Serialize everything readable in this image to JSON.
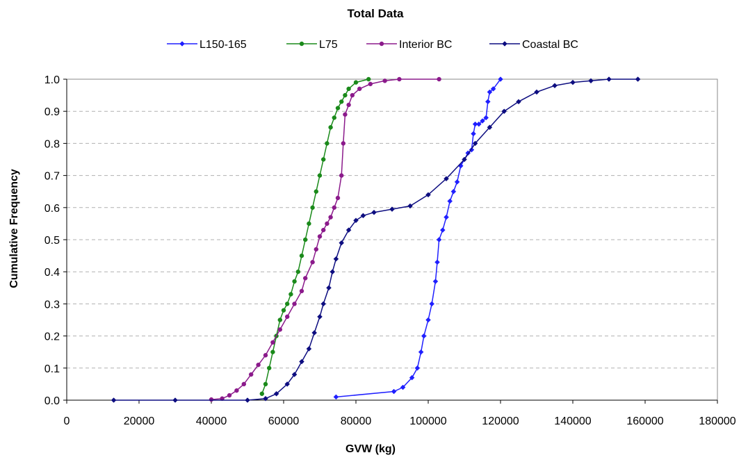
{
  "chart_data": {
    "type": "line",
    "title": "Total Data",
    "xlabel": "GVW (kg)",
    "ylabel": "Cumulative Frequency",
    "xlim": [
      0,
      180000
    ],
    "ylim": [
      0,
      1.0
    ],
    "x_ticks": [
      0,
      20000,
      40000,
      60000,
      80000,
      100000,
      120000,
      140000,
      160000,
      180000
    ],
    "x_tick_labels": [
      "0",
      "20000",
      "40000",
      "60000",
      "80000",
      "100000",
      "120000",
      "140000",
      "160000",
      "180000"
    ],
    "y_ticks": [
      0,
      0.1,
      0.2,
      0.3,
      0.4,
      0.5,
      0.6,
      0.7,
      0.8,
      0.9,
      1.0
    ],
    "y_tick_labels": [
      "0.0",
      "0.1",
      "0.2",
      "0.3",
      "0.4",
      "0.5",
      "0.6",
      "0.7",
      "0.8",
      "0.9",
      "1.0"
    ],
    "grid": "horizontal dashed",
    "legend_position": "top",
    "series": [
      {
        "name": "L150-165",
        "color": "#1f1fff",
        "marker": "diamond",
        "points": [
          [
            74500,
            0.01
          ],
          [
            90500,
            0.027
          ],
          [
            93000,
            0.04
          ],
          [
            95500,
            0.07
          ],
          [
            97000,
            0.1
          ],
          [
            98000,
            0.15
          ],
          [
            98800,
            0.2
          ],
          [
            100000,
            0.25
          ],
          [
            101000,
            0.3
          ],
          [
            102000,
            0.37
          ],
          [
            102500,
            0.43
          ],
          [
            103000,
            0.5
          ],
          [
            104000,
            0.53
          ],
          [
            105000,
            0.57
          ],
          [
            106000,
            0.62
          ],
          [
            107000,
            0.65
          ],
          [
            108000,
            0.68
          ],
          [
            109000,
            0.73
          ],
          [
            110000,
            0.75
          ],
          [
            111000,
            0.77
          ],
          [
            112000,
            0.78
          ],
          [
            112500,
            0.83
          ],
          [
            113000,
            0.86
          ],
          [
            114000,
            0.86
          ],
          [
            115000,
            0.87
          ],
          [
            116000,
            0.88
          ],
          [
            116500,
            0.93
          ],
          [
            117000,
            0.96
          ],
          [
            118000,
            0.97
          ],
          [
            120000,
            1.0
          ]
        ]
      },
      {
        "name": "L75",
        "color": "#1a8a1a",
        "marker": "circle",
        "points": [
          [
            54000,
            0.02
          ],
          [
            55000,
            0.05
          ],
          [
            56000,
            0.1
          ],
          [
            57000,
            0.15
          ],
          [
            58000,
            0.2
          ],
          [
            59000,
            0.25
          ],
          [
            60000,
            0.28
          ],
          [
            61000,
            0.3
          ],
          [
            62000,
            0.33
          ],
          [
            63000,
            0.37
          ],
          [
            64000,
            0.4
          ],
          [
            65000,
            0.45
          ],
          [
            66000,
            0.5
          ],
          [
            67000,
            0.55
          ],
          [
            68000,
            0.6
          ],
          [
            69000,
            0.65
          ],
          [
            70000,
            0.7
          ],
          [
            71000,
            0.75
          ],
          [
            72000,
            0.8
          ],
          [
            73000,
            0.85
          ],
          [
            74000,
            0.88
          ],
          [
            75000,
            0.91
          ],
          [
            76000,
            0.93
          ],
          [
            77000,
            0.95
          ],
          [
            78000,
            0.97
          ],
          [
            80000,
            0.99
          ],
          [
            83500,
            1.0
          ]
        ]
      },
      {
        "name": "Interior BC",
        "color": "#8b1a8b",
        "marker": "circle",
        "points": [
          [
            40000,
            0.002
          ],
          [
            43000,
            0.005
          ],
          [
            45000,
            0.015
          ],
          [
            47000,
            0.03
          ],
          [
            49000,
            0.05
          ],
          [
            51000,
            0.08
          ],
          [
            53000,
            0.11
          ],
          [
            55000,
            0.14
          ],
          [
            57000,
            0.18
          ],
          [
            59000,
            0.22
          ],
          [
            61000,
            0.26
          ],
          [
            63000,
            0.3
          ],
          [
            65000,
            0.34
          ],
          [
            66000,
            0.38
          ],
          [
            68000,
            0.43
          ],
          [
            69000,
            0.47
          ],
          [
            70000,
            0.51
          ],
          [
            71000,
            0.53
          ],
          [
            72000,
            0.55
          ],
          [
            73000,
            0.57
          ],
          [
            74000,
            0.6
          ],
          [
            75000,
            0.63
          ],
          [
            76000,
            0.7
          ],
          [
            76500,
            0.8
          ],
          [
            77000,
            0.89
          ],
          [
            78000,
            0.92
          ],
          [
            79000,
            0.95
          ],
          [
            81000,
            0.97
          ],
          [
            84000,
            0.985
          ],
          [
            88000,
            0.995
          ],
          [
            92000,
            1.0
          ],
          [
            103000,
            1.0
          ]
        ]
      },
      {
        "name": "Coastal BC",
        "color": "#0d0d80",
        "marker": "diamond",
        "points": [
          [
            13000,
            0.0
          ],
          [
            30000,
            0.0
          ],
          [
            50000,
            0.0
          ],
          [
            55000,
            0.005
          ],
          [
            58000,
            0.02
          ],
          [
            61000,
            0.05
          ],
          [
            63000,
            0.08
          ],
          [
            65000,
            0.12
          ],
          [
            67000,
            0.16
          ],
          [
            68500,
            0.21
          ],
          [
            70000,
            0.26
          ],
          [
            71000,
            0.3
          ],
          [
            72500,
            0.35
          ],
          [
            73500,
            0.4
          ],
          [
            74500,
            0.44
          ],
          [
            76000,
            0.49
          ],
          [
            78000,
            0.53
          ],
          [
            80000,
            0.56
          ],
          [
            82000,
            0.575
          ],
          [
            85000,
            0.585
          ],
          [
            90000,
            0.595
          ],
          [
            95000,
            0.605
          ],
          [
            100000,
            0.64
          ],
          [
            105000,
            0.69
          ],
          [
            110000,
            0.75
          ],
          [
            113000,
            0.8
          ],
          [
            117000,
            0.85
          ],
          [
            121000,
            0.9
          ],
          [
            125000,
            0.93
          ],
          [
            130000,
            0.96
          ],
          [
            135000,
            0.98
          ],
          [
            140000,
            0.99
          ],
          [
            145000,
            0.995
          ],
          [
            150000,
            1.0
          ],
          [
            158000,
            1.0
          ]
        ]
      }
    ]
  }
}
